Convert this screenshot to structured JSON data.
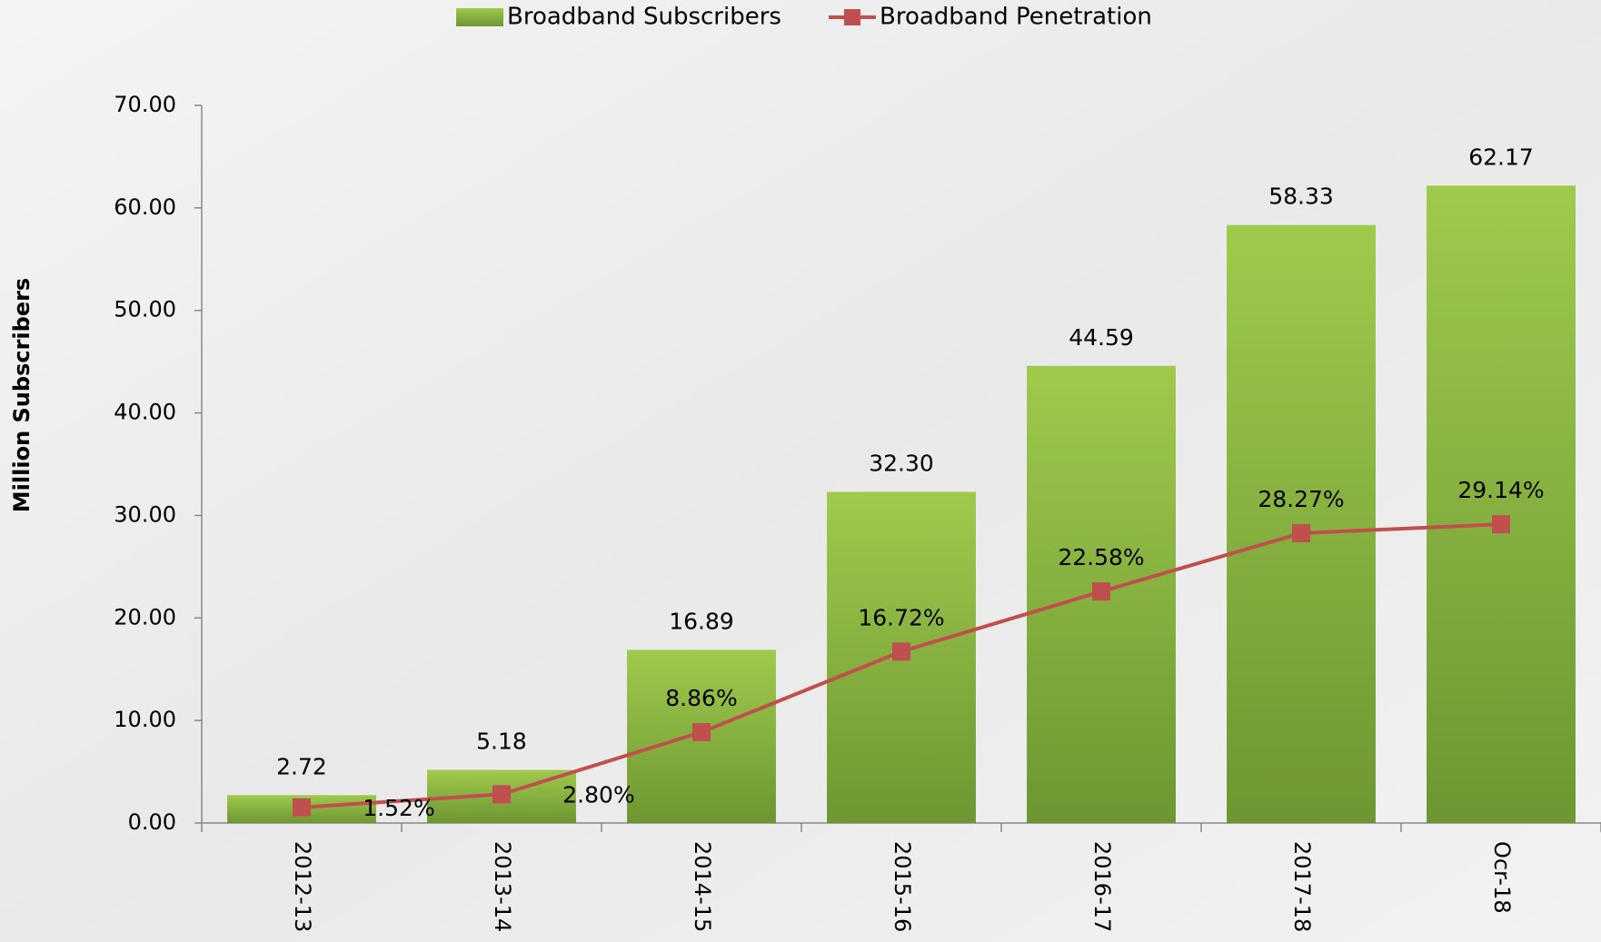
{
  "chart_data": {
    "type": "bar",
    "y_label": "Million Subscribers",
    "categories": [
      "2012-13",
      "2013-14",
      "2014-15",
      "2015-16",
      "2016-17",
      "2017-18",
      "Ocr-18"
    ],
    "series": [
      {
        "name": "Broadband Subscribers",
        "type": "bar",
        "color": "#8db843",
        "values": [
          2.72,
          5.18,
          16.89,
          32.3,
          44.59,
          58.33,
          62.17
        ],
        "value_labels": [
          "2.72",
          "5.18",
          "16.89",
          "32.30",
          "44.59",
          "58.33",
          "62.17"
        ]
      },
      {
        "name": "Broadband Penetration",
        "type": "line",
        "color": "#c0504d",
        "values": [
          1.52,
          2.8,
          8.86,
          16.72,
          22.58,
          28.27,
          29.14
        ],
        "value_labels": [
          "1.52%",
          "2.80%",
          "8.86%",
          "16.72%",
          "22.58%",
          "28.27%",
          "29.14%"
        ]
      }
    ],
    "ylim": [
      0,
      70
    ],
    "yticks": [
      {
        "value": 0,
        "label": "0.00"
      },
      {
        "value": 10,
        "label": "10.00"
      },
      {
        "value": 20,
        "label": "20.00"
      },
      {
        "value": 30,
        "label": "30.00"
      },
      {
        "value": 40,
        "label": "40.00"
      },
      {
        "value": 50,
        "label": "50.00"
      },
      {
        "value": 60,
        "label": "60.00"
      },
      {
        "value": 70,
        "label": "70.00"
      }
    ],
    "legend": "top",
    "grid": false
  }
}
